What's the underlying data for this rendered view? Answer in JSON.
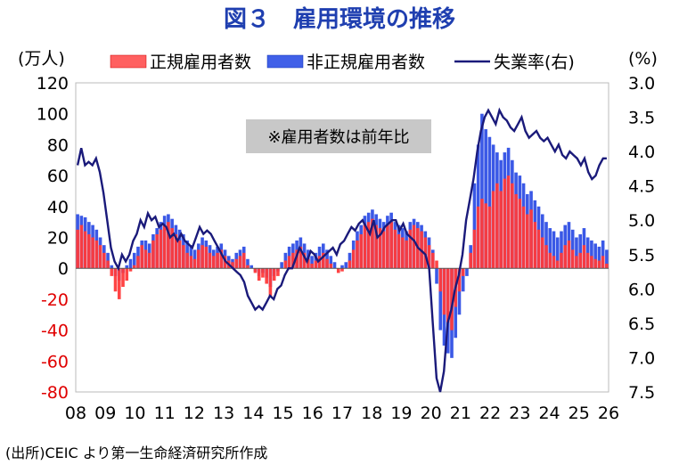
{
  "title": "図３　雇用環境の推移",
  "left_unit": "(万人)",
  "right_unit": "(%)",
  "note": "※雇用者数は前年比",
  "source": "(出所)CEIC より第一生命経済研究所作成",
  "colors": {
    "regular": "#ff3030",
    "nonregular": "#3050e0",
    "unemployment": "#1a1a7a",
    "title": "#1f3fb0",
    "note_bg": "#c8c8c8"
  },
  "chart_data": {
    "type": "bar+line",
    "x_ticks": [
      "08",
      "09",
      "10",
      "11",
      "12",
      "13",
      "14",
      "15",
      "16",
      "17",
      "18",
      "19",
      "20",
      "21",
      "22",
      "23",
      "24",
      "25",
      "26"
    ],
    "y_left": {
      "min": -80,
      "max": 120,
      "ticks": [
        120,
        100,
        80,
        60,
        40,
        20,
        0,
        -20,
        -40,
        -60,
        -80
      ]
    },
    "y_right": {
      "min": 3.0,
      "max": 7.5,
      "inverted": true,
      "ticks": [
        "3.0",
        "3.5",
        "4.0",
        "4.5",
        "5.0",
        "5.5",
        "6.0",
        "6.5",
        "7.0",
        "7.5"
      ]
    },
    "legend": [
      {
        "name": "正規雇用者数",
        "kind": "bar-pattern-red"
      },
      {
        "name": "非正規雇用者数",
        "kind": "bar-pattern-blue"
      },
      {
        "name": "失業率(右)",
        "kind": "line"
      }
    ],
    "series": [
      {
        "name": "正規雇用者数",
        "axis": "left",
        "values": [
          25,
          28,
          24,
          22,
          20,
          18,
          15,
          10,
          5,
          -5,
          -15,
          -20,
          -12,
          -8,
          -2,
          2,
          8,
          15,
          12,
          10,
          18,
          22,
          25,
          28,
          30,
          26,
          22,
          18,
          15,
          10,
          8,
          6,
          12,
          15,
          14,
          10,
          8,
          10,
          12,
          8,
          5,
          4,
          6,
          8,
          10,
          2,
          0,
          -3,
          -8,
          -6,
          -10,
          -18,
          -8,
          -5,
          0,
          5,
          8,
          10,
          12,
          14,
          10,
          6,
          3,
          5,
          8,
          10,
          6,
          3,
          0,
          -3,
          -2,
          0,
          5,
          12,
          18,
          22,
          28,
          30,
          32,
          28,
          26,
          24,
          28,
          30,
          25,
          22,
          20,
          18,
          25,
          28,
          26,
          24,
          20,
          15,
          10,
          5,
          -15,
          -30,
          -35,
          -40,
          -25,
          -15,
          -5,
          0,
          10,
          25,
          40,
          45,
          42,
          40,
          50,
          55,
          50,
          58,
          60,
          55,
          48,
          45,
          40,
          35,
          38,
          30,
          25,
          20,
          15,
          10,
          8,
          5,
          10,
          15,
          18,
          12,
          8,
          10,
          15,
          10,
          8,
          6,
          5,
          8,
          3
        ]
      },
      {
        "name": "非正規雇用者数",
        "axis": "left",
        "values": [
          35,
          34,
          33,
          30,
          28,
          25,
          20,
          15,
          10,
          2,
          -5,
          -8,
          -3,
          2,
          6,
          10,
          14,
          18,
          18,
          16,
          22,
          26,
          30,
          34,
          35,
          32,
          28,
          25,
          22,
          18,
          15,
          12,
          16,
          20,
          18,
          15,
          12,
          14,
          16,
          12,
          8,
          6,
          10,
          12,
          14,
          6,
          2,
          -2,
          -5,
          -3,
          -6,
          -12,
          -5,
          -2,
          4,
          10,
          14,
          16,
          18,
          20,
          16,
          12,
          8,
          10,
          14,
          16,
          12,
          8,
          4,
          0,
          2,
          4,
          10,
          18,
          24,
          28,
          34,
          36,
          38,
          35,
          32,
          30,
          34,
          36,
          30,
          28,
          26,
          24,
          30,
          32,
          30,
          28,
          24,
          20,
          12,
          -10,
          -40,
          -50,
          -55,
          -58,
          -45,
          -30,
          -15,
          -5,
          15,
          55,
          80,
          100,
          90,
          85,
          80,
          75,
          70,
          75,
          78,
          70,
          62,
          60,
          55,
          48,
          50,
          44,
          40,
          35,
          30,
          26,
          24,
          20,
          24,
          28,
          30,
          25,
          20,
          22,
          26,
          20,
          18,
          16,
          14,
          18,
          12
        ]
      },
      {
        "name": "失業率(右)",
        "axis": "right",
        "values": [
          4.2,
          3.95,
          4.2,
          4.15,
          4.2,
          4.1,
          4.3,
          4.6,
          5.0,
          5.4,
          5.6,
          5.7,
          5.5,
          5.6,
          5.5,
          5.3,
          5.2,
          5.0,
          5.1,
          4.9,
          5.0,
          4.95,
          5.1,
          5.05,
          5.1,
          5.25,
          5.2,
          5.3,
          5.2,
          5.3,
          5.35,
          5.4,
          5.25,
          5.1,
          5.2,
          5.15,
          5.2,
          5.3,
          5.4,
          5.5,
          5.6,
          5.65,
          5.7,
          5.75,
          5.8,
          5.9,
          6.1,
          6.2,
          6.3,
          6.25,
          6.3,
          6.2,
          6.1,
          6.15,
          6.0,
          5.95,
          5.8,
          5.7,
          5.7,
          5.55,
          5.4,
          5.5,
          5.6,
          5.45,
          5.5,
          5.6,
          5.55,
          5.5,
          5.45,
          5.4,
          5.5,
          5.35,
          5.3,
          5.2,
          5.1,
          5.15,
          5.05,
          5.0,
          5.1,
          5.2,
          5.0,
          5.25,
          5.2,
          5.1,
          5.05,
          5.0,
          5.0,
          5.15,
          5.05,
          5.2,
          5.25,
          5.3,
          5.4,
          5.45,
          5.5,
          5.7,
          6.5,
          7.3,
          7.5,
          7.2,
          6.5,
          6.3,
          6.0,
          5.8,
          5.5,
          5.0,
          4.7,
          4.4,
          4.0,
          3.7,
          3.5,
          3.4,
          3.5,
          3.6,
          3.4,
          3.5,
          3.55,
          3.65,
          3.7,
          3.6,
          3.5,
          3.7,
          3.8,
          3.75,
          3.7,
          3.8,
          3.85,
          3.8,
          3.9,
          4.0,
          3.9,
          4.05,
          4.1,
          4.0,
          4.05,
          4.1,
          4.2,
          4.1,
          4.3,
          4.4,
          4.35,
          4.2,
          4.1,
          4.1
        ]
      }
    ]
  }
}
